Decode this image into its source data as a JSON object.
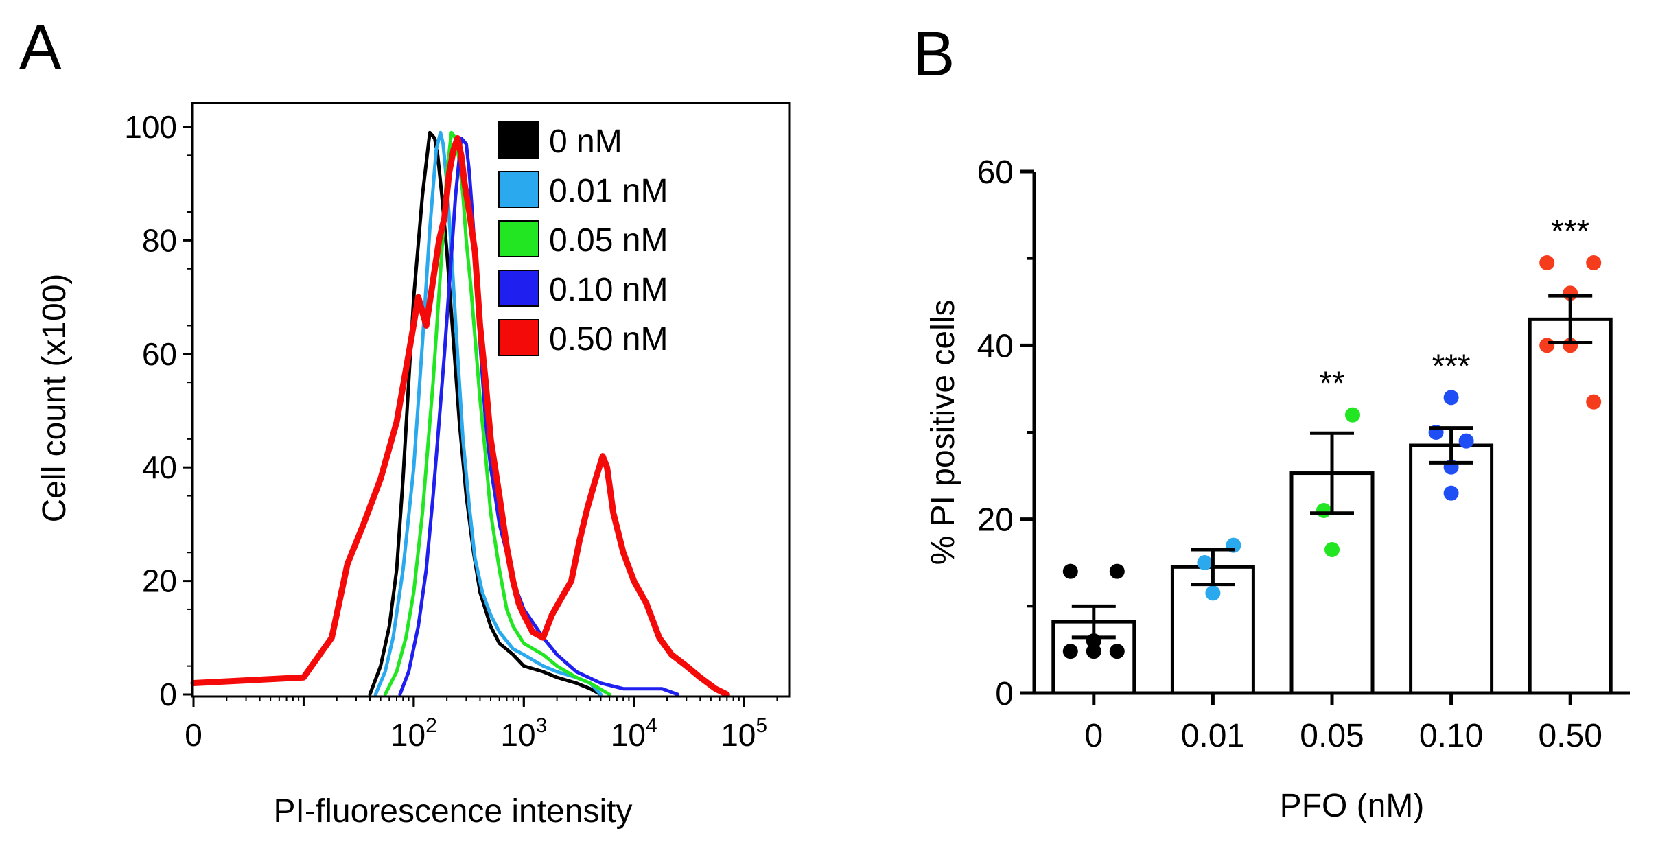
{
  "chart_data": [
    {
      "panel": "A",
      "type": "line",
      "xlabel": "PI-fluorescence intensity",
      "ylabel": "Cell count (x100)",
      "xscale": "log",
      "xlim": [
        1,
        250000
      ],
      "ylim": [
        0,
        100
      ],
      "yticks": [
        0,
        20,
        40,
        60,
        80,
        100
      ],
      "xticks": [
        {
          "value": 1,
          "label": "0"
        },
        {
          "value": 100,
          "base": "10",
          "exp": "2"
        },
        {
          "value": 1000,
          "base": "10",
          "exp": "3"
        },
        {
          "value": 10000,
          "base": "10",
          "exp": "4"
        },
        {
          "value": 100000,
          "base": "10",
          "exp": "5"
        }
      ],
      "legend_position": "top-right",
      "series": [
        {
          "name": "0 nM",
          "color": "#000000",
          "x": [
            40,
            50,
            60,
            70,
            80,
            90,
            100,
            120,
            140,
            155,
            165,
            180,
            200,
            230,
            260,
            300,
            350,
            400,
            500,
            600,
            800,
            1000,
            1500,
            2000,
            3000,
            4000,
            5000
          ],
          "y": [
            0,
            5,
            12,
            22,
            38,
            55,
            70,
            88,
            99,
            98,
            95,
            88,
            78,
            62,
            48,
            35,
            25,
            18,
            12,
            9,
            7,
            5,
            4,
            3,
            2,
            1,
            0
          ]
        },
        {
          "name": "0.01 nM",
          "color": "#2aa9ee",
          "x": [
            45,
            55,
            65,
            80,
            100,
            120,
            140,
            160,
            175,
            185,
            200,
            220,
            250,
            280,
            320,
            360,
            420,
            500,
            600,
            800,
            1000,
            1500,
            2000,
            3000,
            4000,
            5000
          ],
          "y": [
            0,
            4,
            10,
            22,
            40,
            62,
            82,
            96,
            99,
            97,
            90,
            78,
            60,
            45,
            33,
            24,
            18,
            14,
            11,
            8,
            7,
            5,
            4,
            3,
            2,
            0
          ]
        },
        {
          "name": "0.05 nM",
          "color": "#22e622",
          "x": [
            55,
            70,
            85,
            100,
            120,
            150,
            180,
            200,
            220,
            240,
            260,
            280,
            300,
            330,
            360,
            400,
            450,
            500,
            600,
            700,
            800,
            1000,
            1500,
            2000,
            3000,
            4000,
            6000
          ],
          "y": [
            0,
            4,
            10,
            18,
            32,
            55,
            78,
            92,
            99,
            98,
            94,
            88,
            80,
            72,
            63,
            52,
            42,
            32,
            22,
            15,
            12,
            9,
            7,
            5,
            3,
            2,
            0
          ]
        },
        {
          "name": "0.10 nM",
          "color": "#1f1ff0",
          "x": [
            75,
            90,
            110,
            130,
            150,
            170,
            190,
            210,
            240,
            270,
            300,
            320,
            340,
            360,
            400,
            450,
            500,
            550,
            600,
            700,
            800,
            1000,
            1500,
            2000,
            3000,
            5000,
            8000,
            12000,
            18000,
            25000
          ],
          "y": [
            0,
            4,
            12,
            22,
            35,
            48,
            60,
            72,
            88,
            98,
            97,
            92,
            85,
            78,
            62,
            48,
            40,
            35,
            30,
            25,
            20,
            15,
            10,
            7,
            4,
            2,
            1,
            1,
            1,
            0
          ]
        },
        {
          "name": "0.50 nM",
          "color": "#f50a0a",
          "x": [
            1,
            10,
            18,
            25,
            35,
            50,
            70,
            90,
            110,
            130,
            150,
            170,
            190,
            210,
            230,
            250,
            270,
            290,
            320,
            360,
            400,
            450,
            500,
            600,
            700,
            800,
            900,
            1000,
            1200,
            1500,
            1800,
            2200,
            2700,
            3200,
            3800,
            4500,
            5200,
            5700,
            6500,
            8000,
            10000,
            13000,
            17000,
            22000,
            30000,
            40000,
            55000,
            70000
          ],
          "y": [
            2,
            3,
            10,
            23,
            30,
            38,
            48,
            60,
            70,
            65,
            73,
            80,
            84,
            92,
            96,
            98,
            95,
            90,
            85,
            78,
            65,
            55,
            45,
            35,
            26,
            20,
            16,
            14,
            11,
            10,
            14,
            17,
            20,
            27,
            33,
            38,
            42,
            40,
            32,
            25,
            20,
            16,
            10,
            7,
            5,
            3,
            1,
            0
          ]
        }
      ]
    },
    {
      "panel": "B",
      "type": "bar",
      "xlabel": "PFO (nM)",
      "ylabel": "% PI positive cells",
      "ylim": [
        0,
        60
      ],
      "yticks": [
        0,
        20,
        40,
        60
      ],
      "categories": [
        "0",
        "0.01",
        "0.05",
        "0.10",
        "0.50"
      ],
      "values": [
        8.2,
        14.5,
        25.3,
        28.5,
        43
      ],
      "sem": [
        1.8,
        2.0,
        4.6,
        2.0,
        2.7
      ],
      "significance": [
        "",
        "",
        "**",
        "***",
        "***"
      ],
      "points": [
        [
          14,
          14,
          6,
          4.8,
          4.8,
          4.8
        ],
        [
          17,
          15,
          11.5
        ],
        [
          32,
          21,
          16.5
        ],
        [
          34,
          30,
          29,
          26,
          23
        ],
        [
          49.5,
          49.5,
          46,
          40,
          40,
          33.5
        ]
      ],
      "point_colors": [
        "#000000",
        "#2aa9ee",
        "#22e622",
        "#1f4ef5",
        "#f53c1c"
      ]
    }
  ],
  "panel_labels": {
    "a": "A",
    "b": "B"
  }
}
